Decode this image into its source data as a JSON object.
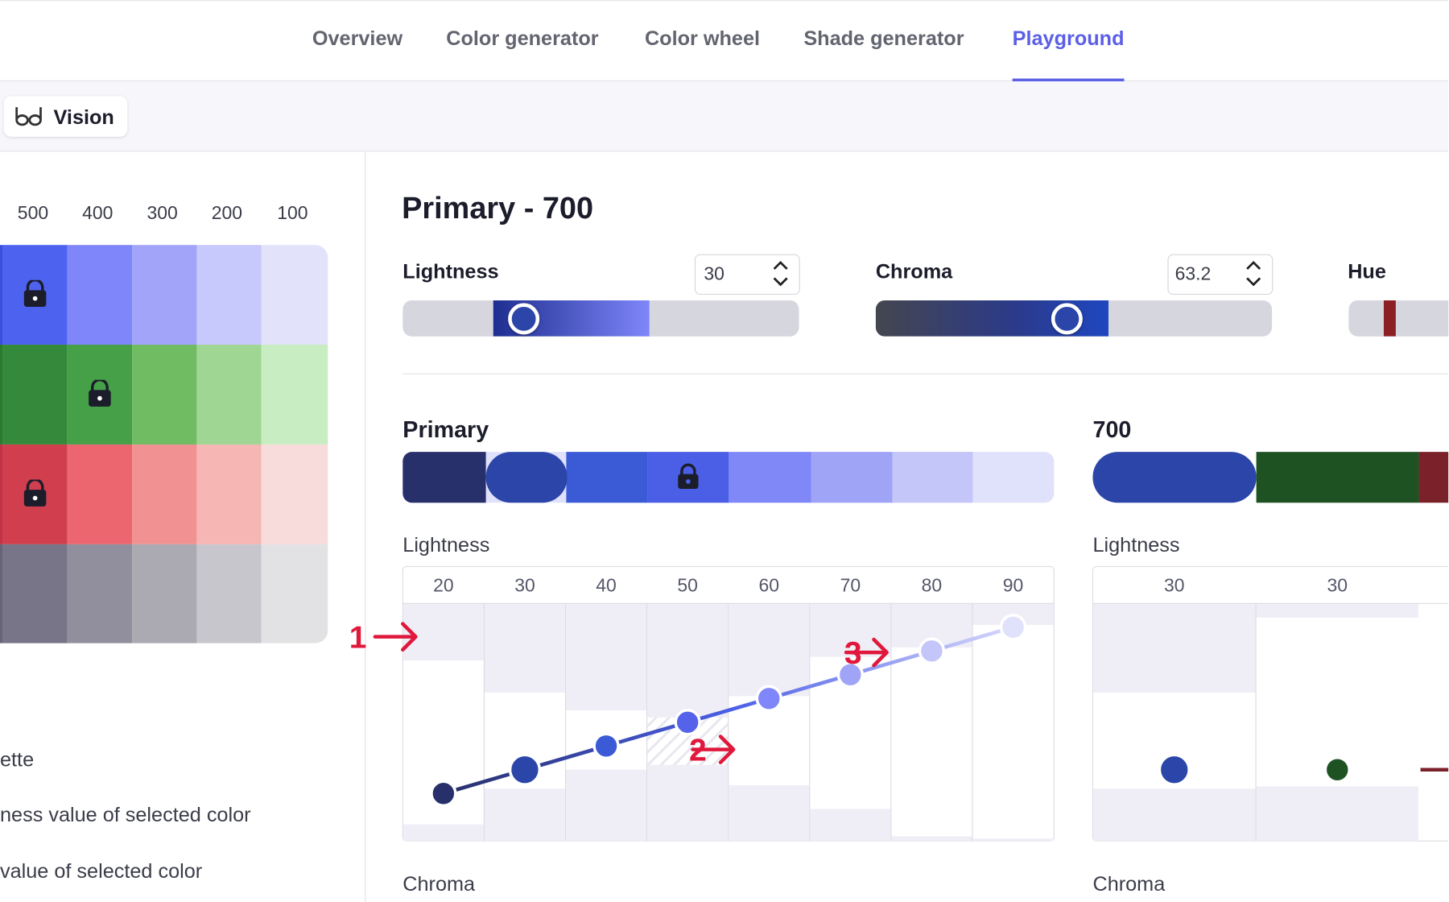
{
  "nav": {
    "tabs": [
      "Overview",
      "Color generator",
      "Color wheel",
      "Shade generator",
      "Playground"
    ],
    "active": 4
  },
  "toolbar": {
    "button": "Vision"
  },
  "palette": {
    "columns": [
      "500",
      "400",
      "300",
      "200",
      "100"
    ]
  },
  "legend_lines": [
    "ette",
    "ness value of selected color",
    "value of selected color"
  ],
  "editor": {
    "title": "Primary - 700",
    "controls": [
      {
        "label": "Lightness",
        "value": "30"
      },
      {
        "label": "Chroma",
        "value": "63.2"
      },
      {
        "label": "Hue"
      }
    ]
  },
  "scale": {
    "title": "Primary"
  },
  "shade": {
    "title": "700"
  },
  "charts": [
    {
      "title": "Lightness",
      "ylim": [
        0,
        100
      ],
      "values": [
        20,
        30,
        40,
        50,
        60,
        70,
        80,
        90
      ],
      "colors": [
        "#27306a",
        "#2b46a8",
        "#3b5bd6",
        "#5563ea",
        "#7f86fa",
        "#a0a4f7",
        "#c4c5f9",
        "#e0e1fb"
      ],
      "bands": [
        [
          7,
          76
        ],
        [
          22,
          62.5
        ],
        [
          30,
          55
        ],
        [
          32,
          52
        ],
        [
          23.5,
          61
        ],
        [
          13.5,
          77.5
        ],
        [
          2,
          81.5
        ],
        [
          1,
          91
        ]
      ],
      "hatched": 3,
      "selected": 1
    },
    {
      "title": "Lightness",
      "ylim": [
        0,
        100
      ],
      "values": [
        30,
        30
      ],
      "colors": [
        "#2b46a8",
        "#1f5223"
      ],
      "bands": [
        [
          22,
          62.5
        ],
        [
          23,
          94
        ]
      ],
      "selected": 0
    }
  ],
  "sections": [
    "Chroma",
    "Chroma"
  ],
  "annotations": [
    "1",
    "2",
    "3"
  ]
}
